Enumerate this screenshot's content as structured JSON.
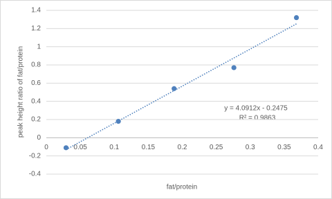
{
  "chart_data": {
    "type": "scatter",
    "x_label": "fat/protein",
    "y_label": "peak height ratio of fat/protein",
    "series": [
      {
        "name": "fat/protein",
        "color": "#4f81bd",
        "x": [
          0.029,
          0.106,
          0.188,
          0.276,
          0.368
        ],
        "values": [
          -0.11,
          0.18,
          0.54,
          0.77,
          1.32
        ]
      }
    ],
    "trendline": {
      "equation": "y = 4.0912x - 0.2475",
      "r_squared": "R² = 0.9863"
    },
    "xlim": [
      0,
      0.4
    ],
    "xticks": [
      0,
      0.05,
      0.1,
      0.15,
      0.2,
      0.25,
      0.3,
      0.35,
      0.4
    ],
    "ylim": [
      -0.4,
      1.4
    ],
    "yticks": [
      -0.4,
      -0.2,
      0,
      0.2,
      0.4,
      0.6,
      0.8,
      1,
      1.2,
      1.4
    ],
    "grid": true
  }
}
